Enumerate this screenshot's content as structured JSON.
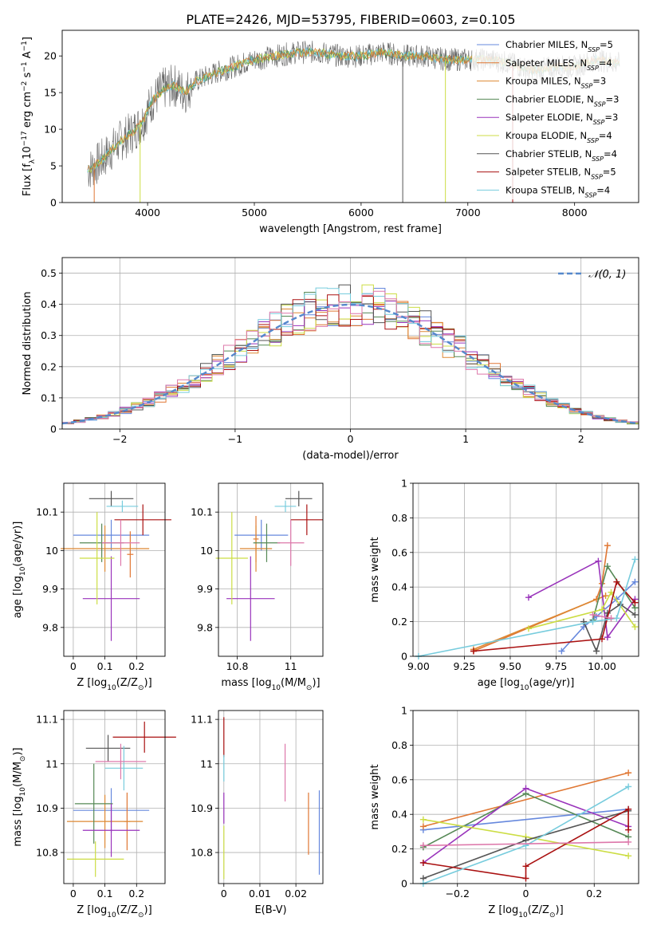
{
  "figure": {
    "title": "PLATE=2426, MJD=53795, FIBERID=0603, z=0.105"
  },
  "series_names": [
    "Chabrier MILES, N_SSP=5",
    "Salpeter MILES, N_SSP=4",
    "Kroupa MILES, N_SSP=3",
    "Chabrier ELODIE, N_SSP=3",
    "Salpeter ELODIE, N_SSP=3",
    "Kroupa ELODIE, N_SSP=4",
    "Chabrier STELIB, N_SSP=4",
    "Salpeter STELIB, N_SSP=5",
    "Kroupa STELIB, N_SSP=4"
  ],
  "colors": {
    "chabrier_miles": "#6688dd",
    "salpeter_miles": "#e07733",
    "kroupa_miles": "#dd8833",
    "chabrier_elodie": "#558855",
    "salpeter_elodie": "#9933bb",
    "kroupa_elodie": "#ccdd44",
    "chabrier_stelib": "#555555",
    "salpeter_stelib": "#aa1111",
    "kroupa_stelib": "#77ccdd",
    "pink": "#dd77aa",
    "normal_curve": "#5588cc"
  },
  "chart_data": [
    {
      "id": "spectrum",
      "type": "line",
      "title": "PLATE=2426, MJD=53795, FIBERID=0603, z=0.105",
      "xlabel": "wavelength [Angstrom, rest frame]",
      "ylabel": "Flux [f_λ 10^-17 erg cm^-2 s^-1 A^-1]",
      "xlim": [
        3200,
        8600
      ],
      "ylim": [
        0,
        23.5
      ],
      "xticks": [
        4000,
        5000,
        6000,
        7000,
        8000
      ],
      "yticks": [
        0,
        5,
        10,
        15,
        20
      ],
      "grid": false,
      "legend": "upper right",
      "data_continuum": {
        "x": [
          3450,
          3550,
          3650,
          3750,
          3850,
          3950,
          4050,
          4150,
          4250,
          4350,
          4450,
          4600,
          4800,
          5000,
          5200,
          5400,
          5600,
          5800,
          6000,
          6200,
          6400,
          6600,
          6800,
          7000,
          7200,
          7400,
          7600,
          7800,
          8000,
          8200,
          8400
        ],
        "y": [
          4.5,
          5.5,
          7.0,
          8.5,
          9.5,
          11.0,
          14.0,
          15.5,
          16.0,
          15.0,
          16.5,
          17.5,
          18.5,
          19.5,
          20.0,
          20.5,
          20.5,
          20.0,
          20.0,
          20.5,
          20.0,
          20.0,
          19.5,
          19.5,
          19.5,
          19.0,
          18.0,
          18.5,
          18.5,
          19.5,
          19.0
        ]
      }
    },
    {
      "id": "residuals",
      "type": "line",
      "xlabel": "(data-model)/error",
      "ylabel": "Normed distribution",
      "xlim": [
        -2.5,
        2.5
      ],
      "ylim": [
        0,
        0.55
      ],
      "xticks": [
        -2,
        -1,
        0,
        1,
        2
      ],
      "yticks": [
        0.0,
        0.1,
        0.2,
        0.3,
        0.4,
        0.5
      ],
      "grid": true,
      "legend": "upper right",
      "legend_label": "N(0,1)",
      "bins": {
        "start": -2.5,
        "width": 0.1,
        "count": 50
      }
    },
    {
      "id": "age_vs_Z",
      "type": "scatter",
      "xlabel": "Z [log10(Z/Z☉)]",
      "ylabel": "age [log10(age/yr)]",
      "xlim": [
        -0.03,
        0.29
      ],
      "ylim": [
        9.725,
        10.175
      ],
      "xticks": [
        0.0,
        0.1,
        0.2
      ],
      "yticks": [
        9.8,
        9.9,
        10.0,
        10.1
      ],
      "grid": true,
      "points": [
        {
          "x": 0.12,
          "y": 10.04,
          "xerr": 0.12,
          "yerr": 0.04,
          "c": "chabrier_miles"
        },
        {
          "x": 0.18,
          "y": 9.99,
          "xerr": 0.01,
          "yerr": 0.06,
          "c": "salpeter_miles"
        },
        {
          "x": 0.1,
          "y": 10.005,
          "xerr": 0.14,
          "yerr": 0.06,
          "c": "kroupa_miles"
        },
        {
          "x": 0.09,
          "y": 10.02,
          "xerr": 0.07,
          "yerr": 0.05,
          "c": "chabrier_elodie"
        },
        {
          "x": 0.12,
          "y": 9.875,
          "xerr": 0.09,
          "yerr": 0.11,
          "c": "salpeter_elodie"
        },
        {
          "x": 0.075,
          "y": 9.98,
          "xerr": 0.055,
          "yerr": 0.12,
          "c": "kroupa_elodie"
        },
        {
          "x": 0.12,
          "y": 10.135,
          "xerr": 0.07,
          "yerr": 0.02,
          "c": "chabrier_stelib"
        },
        {
          "x": 0.22,
          "y": 10.08,
          "xerr": 0.09,
          "yerr": 0.04,
          "c": "salpeter_stelib"
        },
        {
          "x": 0.155,
          "y": 10.115,
          "xerr": 0.05,
          "yerr": 0.015,
          "c": "kroupa_stelib"
        },
        {
          "x": 0.15,
          "y": 10.02,
          "xerr": 0.06,
          "yerr": 0.06,
          "c": "pink"
        }
      ]
    },
    {
      "id": "age_vs_mass",
      "type": "scatter",
      "xlabel": "mass [log10(M/M☉)]",
      "ylabel": "",
      "xlim": [
        10.73,
        11.12
      ],
      "ylim": [
        9.725,
        10.175
      ],
      "xticks": [
        10.8,
        11.0
      ],
      "yticks": [
        9.8,
        9.9,
        10.0,
        10.1
      ],
      "grid": true,
      "points": [
        {
          "x": 10.89,
          "y": 10.04,
          "xerr": 0.1,
          "yerr": 0.04,
          "c": "chabrier_miles"
        },
        {
          "x": 10.87,
          "y": 10.03,
          "xerr": 0.01,
          "yerr": 0.06,
          "c": "salpeter_miles"
        },
        {
          "x": 10.87,
          "y": 10.005,
          "xerr": 0.06,
          "yerr": 0.06,
          "c": "kroupa_miles"
        },
        {
          "x": 10.91,
          "y": 10.02,
          "xerr": 0.05,
          "yerr": 0.05,
          "c": "chabrier_elodie"
        },
        {
          "x": 10.85,
          "y": 9.875,
          "xerr": 0.09,
          "yerr": 0.11,
          "c": "salpeter_elodie"
        },
        {
          "x": 10.78,
          "y": 9.98,
          "xerr": 0.06,
          "yerr": 0.12,
          "c": "kroupa_elodie"
        },
        {
          "x": 11.03,
          "y": 10.135,
          "xerr": 0.05,
          "yerr": 0.02,
          "c": "chabrier_stelib"
        },
        {
          "x": 11.06,
          "y": 10.08,
          "xerr": 0.06,
          "yerr": 0.04,
          "c": "salpeter_stelib"
        },
        {
          "x": 10.98,
          "y": 10.115,
          "xerr": 0.04,
          "yerr": 0.015,
          "c": "kroupa_stelib"
        },
        {
          "x": 11.0,
          "y": 10.02,
          "xerr": 0.05,
          "yerr": 0.06,
          "c": "pink"
        }
      ]
    },
    {
      "id": "weight_vs_age",
      "type": "line",
      "xlabel": "age [log10(age/yr)]",
      "ylabel": "mass weight",
      "xlim": [
        8.97,
        10.2
      ],
      "ylim": [
        0,
        1.0
      ],
      "xticks": [
        9.0,
        9.25,
        9.5,
        9.75,
        10.0
      ],
      "yticks": [
        0.0,
        0.2,
        0.4,
        0.6,
        0.8,
        1.0
      ],
      "grid": true,
      "series": [
        {
          "c": "chabrier_miles",
          "x": [
            9.78,
            9.9,
            9.97,
            10.08,
            10.18
          ],
          "y": [
            0.03,
            0.17,
            0.23,
            0.33,
            0.43
          ]
        },
        {
          "c": "salpeter_miles",
          "x": [
            9.3,
            9.97,
            10.0,
            10.03
          ],
          "y": [
            0.03,
            0.33,
            0.42,
            0.64
          ]
        },
        {
          "c": "kroupa_miles",
          "x": [
            9.3,
            10.02
          ],
          "y": [
            0.04,
            0.35
          ]
        },
        {
          "c": "chabrier_elodie",
          "x": [
            9.95,
            10.03,
            10.18
          ],
          "y": [
            0.21,
            0.52,
            0.28
          ]
        },
        {
          "c": "salpeter_elodie",
          "x": [
            9.6,
            9.98,
            10.03,
            10.18
          ],
          "y": [
            0.34,
            0.55,
            0.11,
            0.33
          ]
        },
        {
          "c": "kroupa_elodie",
          "x": [
            9.6,
            10.0,
            10.05,
            10.18
          ],
          "y": [
            0.16,
            0.27,
            0.37,
            0.17
          ]
        },
        {
          "c": "chabrier_stelib",
          "x": [
            9.9,
            9.97,
            10.03,
            10.1,
            10.18
          ],
          "y": [
            0.2,
            0.03,
            0.25,
            0.3,
            0.24
          ]
        },
        {
          "c": "salpeter_stelib",
          "x": [
            9.3,
            10.0,
            10.08,
            10.18
          ],
          "y": [
            0.03,
            0.1,
            0.43,
            0.31
          ]
        },
        {
          "c": "kroupa_stelib",
          "x": [
            9.0,
            9.95,
            10.08,
            10.18
          ],
          "y": [
            0.0,
            0.2,
            0.22,
            0.56
          ]
        },
        {
          "c": "pink",
          "x": [
            9.95,
            10.05
          ],
          "y": [
            0.24,
            0.22
          ]
        }
      ]
    },
    {
      "id": "mass_vs_Z",
      "type": "scatter",
      "xlabel": "Z [log10(Z/Z☉)]",
      "ylabel": "mass [log10(M/M☉)]",
      "xlim": [
        -0.03,
        0.29
      ],
      "ylim": [
        10.73,
        11.12
      ],
      "xticks": [
        0.0,
        0.1,
        0.2
      ],
      "yticks": [
        10.8,
        10.9,
        11.0,
        11.1
      ],
      "grid": true,
      "points": [
        {
          "x": 0.12,
          "y": 10.895,
          "xerr": 0.12,
          "yerr": 0.05,
          "c": "chabrier_miles"
        },
        {
          "x": 0.17,
          "y": 10.87,
          "xerr": 0.01,
          "yerr": 0.065,
          "c": "salpeter_miles"
        },
        {
          "x": 0.1,
          "y": 10.87,
          "xerr": 0.12,
          "yerr": 0.06,
          "c": "kroupa_miles"
        },
        {
          "x": 0.065,
          "y": 10.91,
          "xerr": 0.06,
          "yerr": 0.09,
          "c": "chabrier_elodie"
        },
        {
          "x": 0.12,
          "y": 10.85,
          "xerr": 0.09,
          "yerr": 0.06,
          "c": "salpeter_elodie"
        },
        {
          "x": 0.07,
          "y": 10.785,
          "xerr": 0.09,
          "yerr": 0.04,
          "c": "kroupa_elodie"
        },
        {
          "x": 0.11,
          "y": 11.035,
          "xerr": 0.07,
          "yerr": 0.03,
          "c": "chabrier_stelib"
        },
        {
          "x": 0.225,
          "y": 11.06,
          "xerr": 0.1,
          "yerr": 0.035,
          "c": "salpeter_stelib"
        },
        {
          "x": 0.16,
          "y": 10.99,
          "xerr": 0.06,
          "yerr": 0.05,
          "c": "kroupa_stelib"
        },
        {
          "x": 0.15,
          "y": 11.005,
          "xerr": 0.08,
          "yerr": 0.04,
          "c": "pink"
        }
      ]
    },
    {
      "id": "mass_vs_ebv",
      "type": "scatter",
      "xlabel": "E(B-V)",
      "ylabel": "",
      "xlim": [
        -0.0015,
        0.0275
      ],
      "ylim": [
        10.73,
        11.12
      ],
      "xticks": [
        0.0,
        0.01,
        0.02
      ],
      "yticks": [
        10.8,
        10.9,
        11.0,
        11.1
      ],
      "grid": true,
      "points": [
        {
          "x": 0.0,
          "y": 11.06,
          "xerr": 0.0,
          "yerr": 0.045,
          "c": "salpeter_stelib"
        },
        {
          "x": 0.0,
          "y": 10.99,
          "xerr": 0.0,
          "yerr": 0.03,
          "c": "kroupa_stelib"
        },
        {
          "x": 0.0,
          "y": 10.9,
          "xerr": 0.0,
          "yerr": 0.035,
          "c": "salpeter_elodie"
        },
        {
          "x": 0.0,
          "y": 10.8,
          "xerr": 0.0,
          "yerr": 0.06,
          "c": "kroupa_elodie"
        },
        {
          "x": 0.017,
          "y": 10.98,
          "xerr": 0.0,
          "yerr": 0.065,
          "c": "pink"
        },
        {
          "x": 0.0235,
          "y": 10.865,
          "xerr": 0.0,
          "yerr": 0.07,
          "c": "salpeter_miles"
        },
        {
          "x": 0.0265,
          "y": 10.845,
          "xerr": 0.0,
          "yerr": 0.095,
          "c": "chabrier_miles"
        }
      ]
    },
    {
      "id": "weight_vs_Z",
      "type": "line",
      "xlabel": "Z [log10(Z/Z☉)]",
      "ylabel": "mass weight",
      "xlim": [
        -0.33,
        0.33
      ],
      "ylim": [
        0,
        1.0
      ],
      "xticks": [
        -0.2,
        0.0,
        0.2
      ],
      "yticks": [
        0.0,
        0.2,
        0.4,
        0.6,
        0.8,
        1.0
      ],
      "grid": true,
      "series": [
        {
          "c": "chabrier_miles",
          "x": [
            -0.3,
            0.3
          ],
          "y": [
            0.31,
            0.43
          ]
        },
        {
          "c": "salpeter_miles",
          "x": [
            -0.3,
            0.3
          ],
          "y": [
            0.33,
            0.64
          ]
        },
        {
          "c": "chabrier_elodie",
          "x": [
            -0.3,
            0.0,
            0.3
          ],
          "y": [
            0.21,
            0.52,
            0.27
          ]
        },
        {
          "c": "salpeter_elodie",
          "x": [
            -0.3,
            0.0,
            0.3
          ],
          "y": [
            0.12,
            0.55,
            0.33
          ]
        },
        {
          "c": "kroupa_elodie",
          "x": [
            -0.3,
            0.0,
            0.3
          ],
          "y": [
            0.37,
            0.27,
            0.16
          ]
        },
        {
          "c": "chabrier_stelib",
          "x": [
            -0.3,
            0.0,
            0.3
          ],
          "y": [
            0.03,
            0.25,
            0.42
          ]
        },
        {
          "c": "salpeter_stelib",
          "x": [
            -0.3,
            0.0,
            0.0,
            0.3,
            0.3
          ],
          "y": [
            0.12,
            0.03,
            0.1,
            0.43,
            0.31
          ]
        },
        {
          "c": "kroupa_stelib",
          "x": [
            -0.3,
            0.0,
            0.3
          ],
          "y": [
            0.0,
            0.22,
            0.56
          ]
        },
        {
          "c": "pink",
          "x": [
            -0.3,
            0.3
          ],
          "y": [
            0.22,
            0.24
          ]
        }
      ]
    }
  ]
}
